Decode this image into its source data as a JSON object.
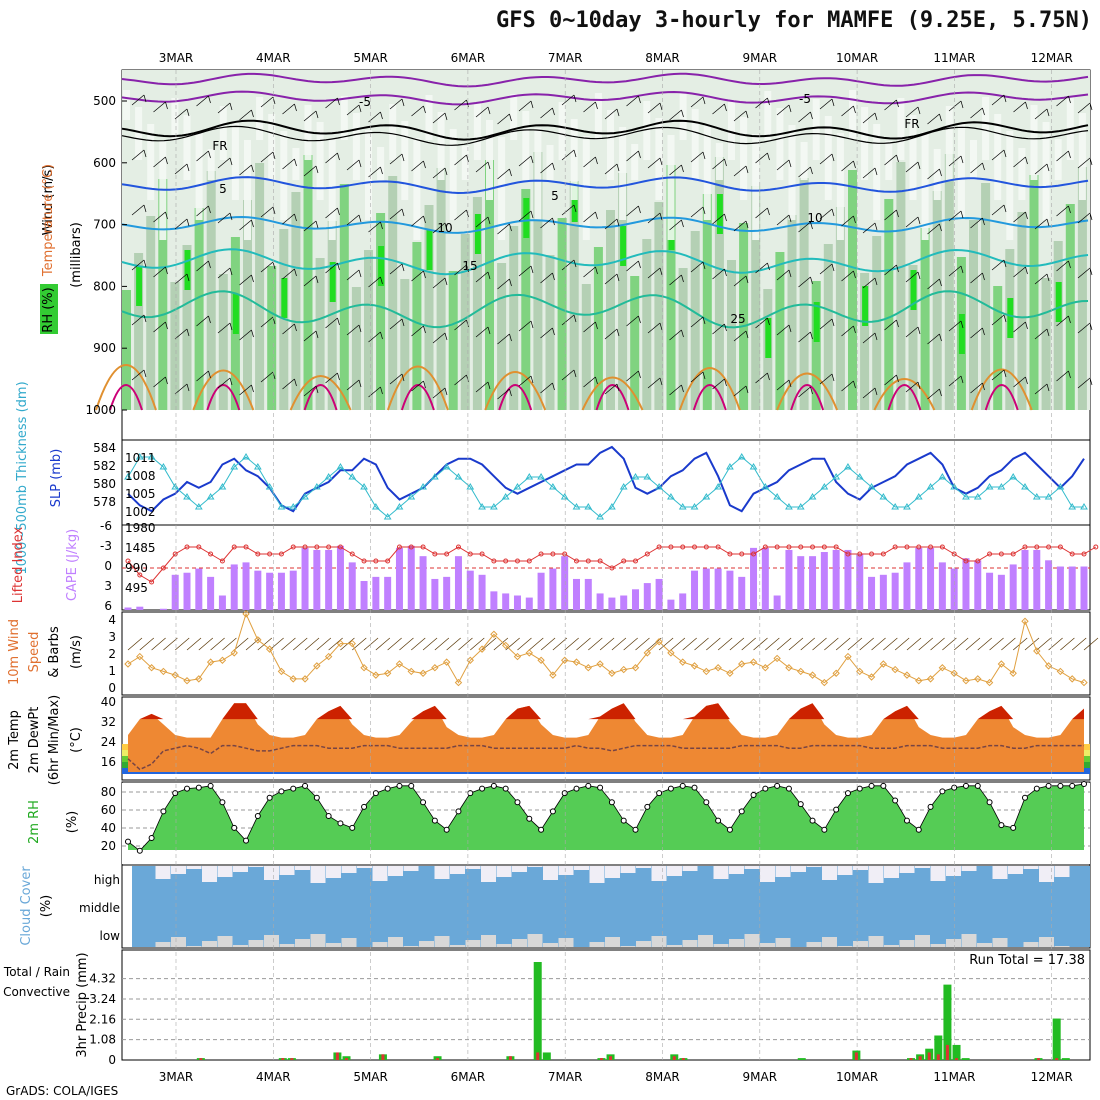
{
  "title": "GFS 0~10day 3-hourly for MAMFE (9.25E, 5.75N)",
  "footer": "GrADS: COLA/IGES",
  "dates": [
    "3MAR",
    "4MAR",
    "5MAR",
    "6MAR",
    "7MAR",
    "8MAR",
    "9MAR",
    "10MAR",
    "11MAR",
    "12MAR"
  ],
  "colors": {
    "rh_green": "#33cc33",
    "rh_light": "#ccddcc",
    "cape_bar": "#c080ff",
    "li_line": "#dd3333",
    "wind_line": "#e0a040",
    "cloud_blue": "#6aa8d8",
    "precip_total": "#22bb22",
    "precip_conv": "#dd3333"
  },
  "panels": {
    "profile": {
      "label_rh": "RH (%)",
      "label_temp": "Temperature (°C)",
      "label_wind": "Wind (m/s)",
      "label_units": "(millibars)",
      "yticks": [
        "500",
        "600",
        "700",
        "800",
        "900",
        "1000"
      ],
      "contour_labels": [
        "-5",
        "5",
        "10",
        "15",
        "25",
        "FR"
      ]
    },
    "slp": {
      "label_thk": "1000~500mb Thickness (dm)",
      "label_slp": "SLP (mb)",
      "yticks_left": [
        "584",
        "582",
        "580",
        "578"
      ],
      "yticks_right": [
        "1011",
        "1008",
        "1005",
        "1002"
      ]
    },
    "cape": {
      "label_li": "Lifted Index",
      "label_cape": "CAPE (J/kg)",
      "yticks_left": [
        "-6",
        "-3",
        "0",
        "3",
        "6"
      ],
      "yticks_right": [
        "1980",
        "1485",
        "990",
        "495"
      ]
    },
    "wind10": {
      "label1": "10m Wind",
      "label2": "Speed",
      "label3": "& Barbs",
      "units": "(m/s)",
      "yticks": [
        "4",
        "3",
        "2",
        "1",
        "0"
      ]
    },
    "temp2m": {
      "label1": "2m Temp",
      "label2": "2m DewPt",
      "label3": "(6hr Min/Max)",
      "units": "(°C)",
      "yticks": [
        "40",
        "32",
        "24",
        "16"
      ]
    },
    "rh2m": {
      "label": "2m RH",
      "units": "(%)",
      "yticks": [
        "80",
        "60",
        "40",
        "20"
      ]
    },
    "cloud": {
      "label": "Cloud Cover",
      "units": "(%)",
      "levels": [
        "high",
        "middle",
        "low"
      ]
    },
    "precip": {
      "label1": "Total / Rain",
      "label2": "Convective",
      "label3": "3hr Precip (mm)",
      "yticks": [
        "4.32",
        "3.24",
        "2.16",
        "1.08",
        "0"
      ],
      "run_total": "Run Total = 17.38"
    }
  },
  "chart_data": [
    {
      "type": "line",
      "title": "1000~500mb Thickness / SLP",
      "series": [
        {
          "name": "SLP (mb)",
          "values": [
            1005,
            1003,
            1002,
            1004,
            1005,
            1007,
            1006,
            1007,
            1010,
            1011,
            1009,
            1008,
            1006,
            1003,
            1002,
            1005,
            1006,
            1007,
            1009,
            1009,
            1011,
            1010,
            1006,
            1004,
            1005,
            1006,
            1008,
            1010,
            1011,
            1011,
            1010,
            1008,
            1006,
            1005,
            1006,
            1007,
            1008,
            1009,
            1010,
            1010,
            1012,
            1013,
            1011,
            1006,
            1005,
            1006,
            1008,
            1009,
            1011,
            1012,
            1008,
            1003,
            1002,
            1005,
            1006,
            1007,
            1009,
            1010,
            1011,
            1011,
            1007,
            1005,
            1004,
            1006,
            1007,
            1008,
            1010,
            1011,
            1012,
            1010,
            1006,
            1005,
            1006,
            1008,
            1009,
            1011,
            1012,
            1010,
            1008,
            1006,
            1008,
            1011
          ]
        },
        {
          "name": "Thickness (dm)",
          "values": [
            581,
            583,
            583,
            582,
            580,
            579,
            578,
            579,
            580,
            582,
            583,
            582,
            580,
            578,
            578,
            579,
            580,
            581,
            582,
            581,
            580,
            578,
            577,
            578,
            579,
            580,
            581,
            582,
            581,
            580,
            578,
            578,
            579,
            580,
            581,
            581,
            580,
            579,
            578,
            578,
            577,
            578,
            580,
            581,
            581,
            580,
            579,
            578,
            578,
            579,
            580,
            582,
            583,
            582,
            580,
            579,
            578,
            578,
            579,
            580,
            581,
            582,
            581,
            580,
            579,
            578,
            578,
            579,
            580,
            581,
            580,
            579,
            579,
            580,
            580,
            581,
            580,
            579,
            579,
            580,
            578,
            578
          ]
        }
      ]
    },
    {
      "type": "bar",
      "title": "CAPE / Lifted Index",
      "series": [
        {
          "name": "CAPE (J/kg)",
          "values": [
            60,
            80,
            0,
            30,
            850,
            900,
            1000,
            800,
            350,
            1100,
            1150,
            950,
            900,
            900,
            950,
            1500,
            1450,
            1450,
            1550,
            1150,
            700,
            800,
            800,
            1500,
            1550,
            1300,
            750,
            800,
            1300,
            950,
            850,
            450,
            400,
            350,
            300,
            900,
            1000,
            1300,
            750,
            750,
            400,
            300,
            350,
            500,
            650,
            750,
            250,
            400,
            950,
            1000,
            1000,
            950,
            800,
            1500,
            1500,
            350,
            1450,
            1300,
            1300,
            1400,
            1450,
            1450,
            1350,
            800,
            850,
            900,
            1150,
            1500,
            1500,
            1150,
            1000,
            1250,
            1200,
            900,
            850,
            1100,
            1450,
            1450,
            1200,
            1050,
            1050,
            1050
          ]
        },
        {
          "name": "Lifted Index",
          "values": [
            -1,
            1,
            2,
            0,
            -2,
            -3,
            -3,
            -2,
            -1,
            -3,
            -3,
            -2,
            -2,
            -2,
            -3,
            -3,
            -3,
            -3,
            -3,
            -2,
            -1,
            -1,
            -1,
            -3,
            -3,
            -3,
            -2,
            -2,
            -3,
            -2,
            -2,
            -1,
            -1,
            -1,
            -1,
            -2,
            -2,
            -2,
            -1,
            -1,
            -1,
            0,
            -1,
            -1,
            -2,
            -3,
            -3,
            -3,
            -3,
            -3,
            -3,
            -2,
            -2,
            -2,
            -3,
            -3,
            -3,
            -3,
            -3,
            -3,
            -3,
            -2,
            -2,
            -2,
            -2,
            -3,
            -3,
            -3,
            -3,
            -3,
            -2,
            -1,
            -1,
            -2,
            -2,
            -2,
            -3,
            -3,
            -3,
            -3,
            -2,
            -2,
            -3
          ]
        }
      ]
    },
    {
      "type": "line",
      "title": "10m Wind Speed",
      "series": [
        {
          "name": "Wind Speed (m/s)",
          "values": [
            1.4,
            1.8,
            1.2,
            1.0,
            0.8,
            0.5,
            0.6,
            1.5,
            1.6,
            2.0,
            4.1,
            2.7,
            2.2,
            1.0,
            0.6,
            0.6,
            1.3,
            1.8,
            2.5,
            2.5,
            1.2,
            0.8,
            0.9,
            1.4,
            1.0,
            0.9,
            1.2,
            1.5,
            0.4,
            1.6,
            2.2,
            3.0,
            2.4,
            1.8,
            2.0,
            1.6,
            0.8,
            1.6,
            1.5,
            1.2,
            1.4,
            0.9,
            1.1,
            1.2,
            2.0,
            2.6,
            2.0,
            1.5,
            1.3,
            1.0,
            1.2,
            0.9,
            1.4,
            1.5,
            1.2,
            1.7,
            1.2,
            1.0,
            0.8,
            0.4,
            0.9,
            1.8,
            1.0,
            0.7,
            1.4,
            1.1,
            0.8,
            0.5,
            0.6,
            1.2,
            0.9,
            0.5,
            0.6,
            0.4,
            1.4,
            0.9,
            3.7,
            2.1,
            1.3,
            1.0,
            0.6,
            0.4
          ]
        }
      ]
    },
    {
      "type": "area",
      "title": "2m Temp / DewPt",
      "series": [
        {
          "name": "2m Temp (°C)",
          "values": [
            26,
            32,
            34,
            30,
            26,
            25,
            25,
            25,
            32,
            38,
            38,
            30,
            26,
            25,
            25,
            26,
            32,
            35,
            37,
            30,
            26,
            25,
            25,
            26,
            31,
            35,
            37,
            29,
            26,
            25,
            25,
            26,
            32,
            36,
            37,
            30,
            26,
            25,
            25,
            26,
            33,
            36,
            38,
            31,
            26,
            25,
            25,
            26,
            33,
            37,
            38,
            31,
            26,
            25,
            25,
            26,
            32,
            36,
            38,
            30,
            26,
            25,
            25,
            26,
            32,
            35,
            37,
            29,
            26,
            25,
            25,
            26,
            32,
            35,
            37,
            29,
            26,
            25,
            25,
            26,
            32,
            36
          ]
        },
        {
          "name": "2m DewPt (°C)",
          "values": [
            17,
            13,
            15,
            20,
            21,
            22,
            21,
            19,
            22,
            22,
            21,
            20,
            20,
            21,
            22,
            22,
            22,
            21,
            21,
            21,
            22,
            22,
            22,
            21,
            21,
            21,
            21,
            21,
            22,
            22,
            22,
            21,
            21,
            21,
            21,
            21,
            21,
            21,
            22,
            21,
            21,
            20,
            21,
            22,
            22,
            22,
            22,
            21,
            21,
            21,
            21,
            21,
            22,
            22,
            22,
            22,
            21,
            21,
            22,
            22,
            22,
            22,
            22,
            21,
            21,
            21,
            22,
            22,
            22,
            21,
            21,
            21,
            21,
            22,
            22,
            21,
            21,
            22,
            22,
            22,
            22,
            22
          ]
        }
      ]
    },
    {
      "type": "area",
      "title": "2m RH",
      "series": [
        {
          "name": "2m RH (%)",
          "values": [
            27,
            17,
            31,
            60,
            80,
            85,
            86,
            88,
            70,
            42,
            28,
            55,
            75,
            82,
            85,
            88,
            75,
            55,
            47,
            42,
            65,
            80,
            85,
            88,
            88,
            70,
            50,
            40,
            60,
            80,
            85,
            88,
            85,
            70,
            52,
            40,
            60,
            80,
            85,
            88,
            86,
            70,
            50,
            40,
            65,
            80,
            85,
            88,
            86,
            70,
            50,
            40,
            60,
            78,
            85,
            88,
            85,
            68,
            50,
            40,
            62,
            80,
            85,
            88,
            88,
            72,
            50,
            40,
            65,
            82,
            86,
            88,
            88,
            70,
            45,
            42,
            75,
            85,
            88,
            88,
            88,
            90
          ]
        }
      ]
    },
    {
      "type": "bar",
      "title": "3hr Precip",
      "series": [
        {
          "name": "Total / Rain (mm)",
          "values": [
            0,
            0,
            0,
            0,
            0,
            0,
            0,
            0,
            0.1,
            0,
            0,
            0,
            0,
            0,
            0,
            0,
            0,
            0.1,
            0.1,
            0,
            0,
            0,
            0,
            0.4,
            0.2,
            0,
            0,
            0,
            0.3,
            0,
            0,
            0,
            0,
            0,
            0.2,
            0,
            0,
            0,
            0,
            0,
            0,
            0,
            0.2,
            0,
            0,
            5.2,
            0.4,
            0,
            0,
            0,
            0,
            0,
            0.1,
            0.3,
            0,
            0,
            0,
            0,
            0,
            0,
            0.3,
            0.1,
            0,
            0,
            0,
            0,
            0,
            0,
            0,
            0,
            0,
            0,
            0,
            0,
            0.1,
            0,
            0,
            0,
            0,
            0,
            0.5,
            0,
            0,
            0,
            0,
            0,
            0.1,
            0.3,
            0.6,
            1.3,
            4.0,
            0.8,
            0.1,
            0,
            0,
            0,
            0,
            0,
            0,
            0,
            0.1,
            0,
            2.2,
            0.1,
            0,
            0
          ]
        },
        {
          "name": "Convective (mm)",
          "values": [
            0,
            0,
            0,
            0,
            0,
            0,
            0,
            0,
            0.1,
            0,
            0,
            0,
            0,
            0,
            0,
            0,
            0,
            0.1,
            0.1,
            0,
            0,
            0,
            0,
            0.4,
            0.1,
            0,
            0,
            0,
            0.3,
            0,
            0,
            0,
            0,
            0,
            0.1,
            0,
            0,
            0,
            0,
            0,
            0,
            0,
            0.2,
            0,
            0,
            0.4,
            0,
            0,
            0,
            0,
            0,
            0,
            0.1,
            0.2,
            0,
            0,
            0,
            0,
            0,
            0,
            0.2,
            0.1,
            0,
            0,
            0,
            0,
            0,
            0,
            0,
            0,
            0,
            0,
            0,
            0,
            0,
            0,
            0,
            0,
            0,
            0,
            0.4,
            0,
            0,
            0,
            0,
            0,
            0.1,
            0.2,
            0.4,
            0.3,
            0.8,
            0.1,
            0,
            0,
            0,
            0,
            0,
            0,
            0,
            0,
            0.1,
            0,
            0.1,
            0,
            0,
            0
          ]
        }
      ]
    }
  ]
}
